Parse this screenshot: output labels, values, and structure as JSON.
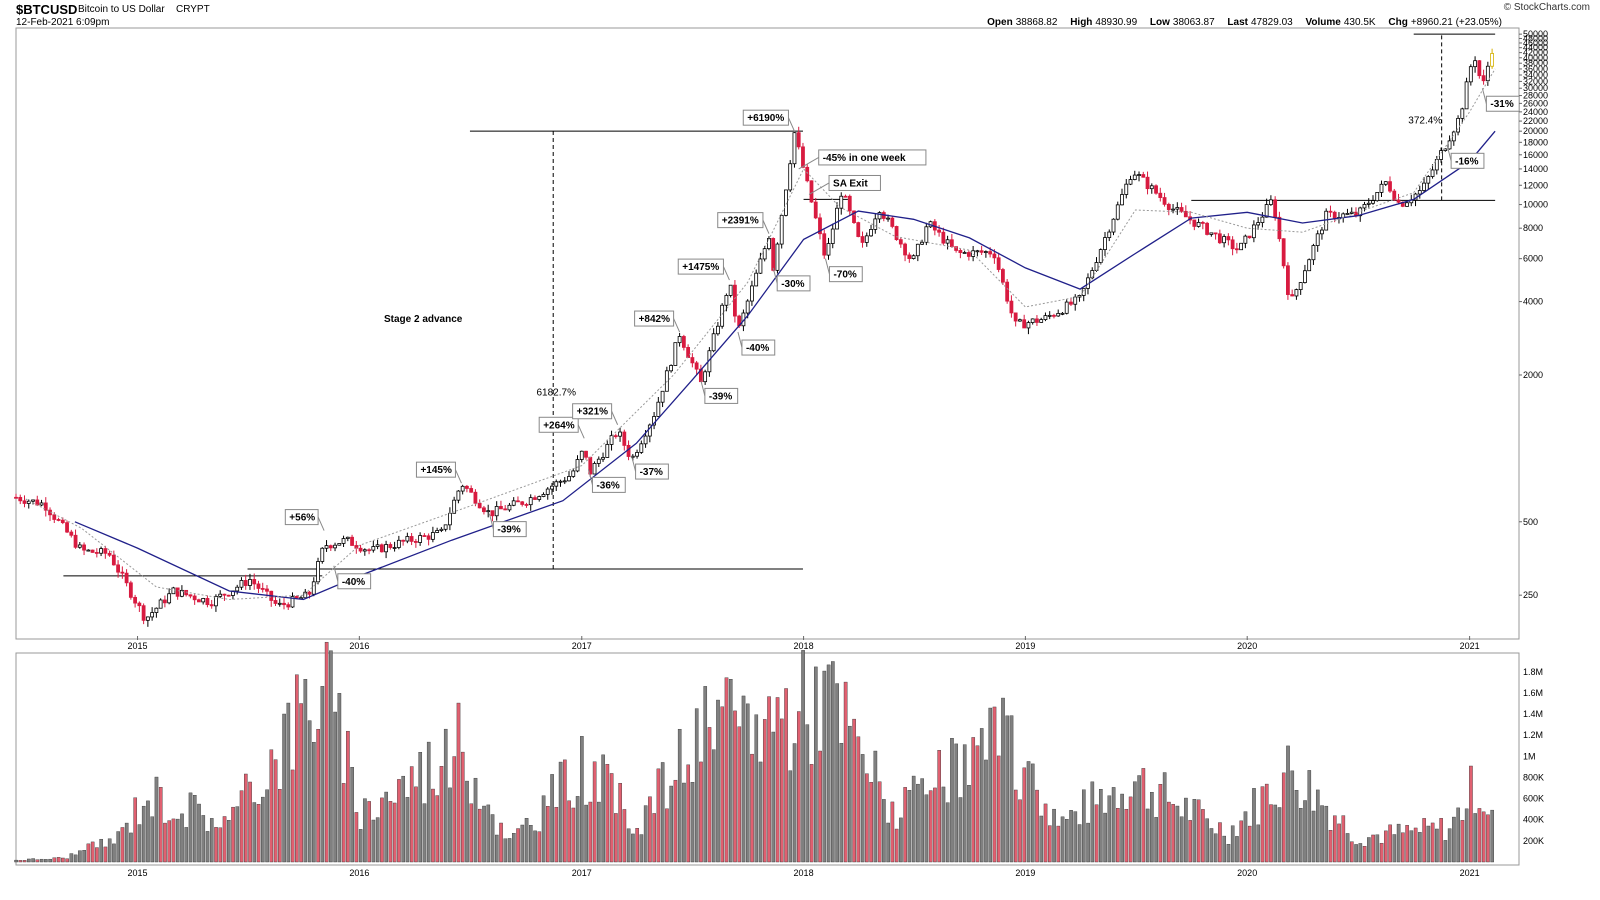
{
  "header": {
    "symbol": "$BTCUSD",
    "name": "Bitcoin to US Dollar",
    "exchange": "CRYPT",
    "date": "12-Feb-2021 6:09pm",
    "brand": "© StockCharts.com",
    "open_label": "Open",
    "open": "38868.82",
    "high_label": "High",
    "high": "48930.99",
    "low_label": "Low",
    "low": "38063.87",
    "last_label": "Last",
    "last": "47829.03",
    "volume_label": "Volume",
    "volume": "430.5K",
    "chg_label": "Chg",
    "chg": "+8960.21 (+23.05%)"
  },
  "colors": {
    "up": "#000000",
    "down": "#d81b40",
    "ma_long": "#20208a",
    "ma_short": "#999999",
    "vol_up": "#808080",
    "vol_down": "#e06070",
    "last_bar": "#d4b000"
  },
  "chart_data": [
    {
      "type": "candlestick",
      "scale": "log",
      "ylim": [
        170,
        52000
      ],
      "xlim": [
        "2014-06-15",
        "2021-02-20"
      ],
      "x_ticks": [
        "2015",
        "2016",
        "2017",
        "2018",
        "2019",
        "2020",
        "2021"
      ],
      "y_ticks": [
        250,
        500,
        2000,
        4000,
        6000,
        8000,
        10000,
        12000,
        14000,
        16000,
        18000,
        20000,
        22000,
        24000,
        26000,
        28000,
        30000,
        32000,
        34000,
        36000,
        38000,
        40000,
        42000,
        44000,
        46000,
        48000,
        50000
      ],
      "price_path": [
        [
          "2014-06-15",
          630
        ],
        [
          "2014-08-01",
          590
        ],
        [
          "2014-10-01",
          380
        ],
        [
          "2014-11-15",
          370
        ],
        [
          "2015-01-14",
          200
        ],
        [
          "2015-03-01",
          260
        ],
        [
          "2015-05-01",
          235
        ],
        [
          "2015-07-05",
          290
        ],
        [
          "2015-08-20",
          225
        ],
        [
          "2015-10-10",
          250
        ],
        [
          "2015-11-04",
          400
        ],
        [
          "2015-12-10",
          420
        ],
        [
          "2016-01-20",
          380
        ],
        [
          "2016-03-15",
          415
        ],
        [
          "2016-05-15",
          450
        ],
        [
          "2016-06-17",
          720
        ],
        [
          "2016-08-02",
          540
        ],
        [
          "2016-10-01",
          610
        ],
        [
          "2016-12-15",
          780
        ],
        [
          "2017-01-05",
          1000
        ],
        [
          "2017-01-12",
          780
        ],
        [
          "2017-03-01",
          1180
        ],
        [
          "2017-03-24",
          900
        ],
        [
          "2017-05-01",
          1400
        ],
        [
          "2017-06-11",
          2950
        ],
        [
          "2017-07-16",
          1850
        ],
        [
          "2017-09-01",
          4800
        ],
        [
          "2017-09-15",
          3000
        ],
        [
          "2017-11-05",
          7500
        ],
        [
          "2017-11-12",
          5500
        ],
        [
          "2017-12-17",
          19700
        ],
        [
          "2018-02-06",
          6000
        ],
        [
          "2018-03-05",
          11500
        ],
        [
          "2018-04-06",
          6600
        ],
        [
          "2018-05-05",
          9800
        ],
        [
          "2018-06-29",
          5800
        ],
        [
          "2018-07-25",
          8400
        ],
        [
          "2018-09-10",
          6300
        ],
        [
          "2018-11-10",
          6400
        ],
        [
          "2018-12-15",
          3200
        ],
        [
          "2019-02-01",
          3400
        ],
        [
          "2019-04-01",
          4100
        ],
        [
          "2019-06-26",
          13800
        ],
        [
          "2019-09-01",
          9600
        ],
        [
          "2019-12-18",
          6500
        ],
        [
          "2020-02-12",
          10500
        ],
        [
          "2020-03-12",
          3900
        ],
        [
          "2020-05-10",
          9000
        ],
        [
          "2020-07-01",
          9100
        ],
        [
          "2020-08-17",
          12400
        ],
        [
          "2020-09-08",
          10000
        ],
        [
          "2020-10-15",
          11500
        ],
        [
          "2020-12-16",
          23000
        ],
        [
          "2021-01-08",
          42000
        ],
        [
          "2021-01-22",
          30000
        ],
        [
          "2021-02-12",
          48930
        ]
      ],
      "ma_long": [
        [
          "2014-09-20",
          500
        ],
        [
          "2015-01-01",
          390
        ],
        [
          "2015-06-01",
          260
        ],
        [
          "2015-10-01",
          240
        ],
        [
          "2016-01-01",
          300
        ],
        [
          "2016-06-01",
          420
        ],
        [
          "2016-12-01",
          610
        ],
        [
          "2017-04-01",
          1050
        ],
        [
          "2017-07-01",
          1900
        ],
        [
          "2017-10-01",
          3500
        ],
        [
          "2018-01-01",
          7200
        ],
        [
          "2018-04-01",
          9400
        ],
        [
          "2018-07-01",
          8700
        ],
        [
          "2018-10-01",
          7300
        ],
        [
          "2019-01-01",
          5500
        ],
        [
          "2019-04-01",
          4500
        ],
        [
          "2019-07-01",
          6300
        ],
        [
          "2019-10-01",
          8800
        ],
        [
          "2020-01-01",
          9300
        ],
        [
          "2020-04-01",
          8400
        ],
        [
          "2020-07-01",
          9000
        ],
        [
          "2020-10-01",
          10500
        ],
        [
          "2021-01-01",
          15000
        ],
        [
          "2021-02-12",
          20000
        ]
      ],
      "ma_short": [
        [
          "2014-07-01",
          620
        ],
        [
          "2014-10-01",
          470
        ],
        [
          "2015-02-01",
          270
        ],
        [
          "2015-06-01",
          240
        ],
        [
          "2015-10-01",
          250
        ],
        [
          "2016-01-01",
          400
        ],
        [
          "2016-07-01",
          580
        ],
        [
          "2017-01-01",
          850
        ],
        [
          "2017-06-01",
          2000
        ],
        [
          "2017-10-01",
          4800
        ],
        [
          "2018-01-01",
          14000
        ],
        [
          "2018-03-01",
          9800
        ],
        [
          "2018-06-01",
          7400
        ],
        [
          "2018-10-01",
          6500
        ],
        [
          "2019-01-01",
          3800
        ],
        [
          "2019-04-01",
          4200
        ],
        [
          "2019-07-01",
          9500
        ],
        [
          "2019-10-01",
          9300
        ],
        [
          "2020-01-01",
          8000
        ],
        [
          "2020-04-01",
          7700
        ],
        [
          "2020-07-01",
          9300
        ],
        [
          "2020-10-01",
          11200
        ],
        [
          "2021-01-01",
          24000
        ],
        [
          "2021-02-12",
          36000
        ]
      ],
      "horizontal_lines": [
        {
          "x1": "2014-09-01",
          "x2": "2015-11-01",
          "y": 300
        },
        {
          "x1": "2015-07-01",
          "x2": "2017-12-31",
          "y": 320
        },
        {
          "x1": "2016-07-01",
          "x2": "2017-12-31",
          "y": 20000
        },
        {
          "x1": "2018-01-01",
          "x2": "2018-03-15",
          "y": 10500
        },
        {
          "x1": "2019-10-01",
          "x2": "2021-02-12",
          "y": 10400
        },
        {
          "x1": "2020-10-01",
          "x2": "2021-02-12",
          "y": 50000
        }
      ],
      "vertical_lines": [
        {
          "x": "2016-11-15",
          "y1": 320,
          "y2": 20000
        },
        {
          "x": "2020-11-16",
          "y1": 10400,
          "y2": 50000
        }
      ],
      "annotations": [
        {
          "label": "+56%",
          "x": "2015-11-04",
          "y": 460,
          "dir": "up",
          "boxed": true
        },
        {
          "label": "-40%",
          "x": "2015-11-20",
          "y": 330,
          "dir": "down",
          "boxed": true
        },
        {
          "label": "+145%",
          "x": "2016-06-17",
          "y": 720,
          "dir": "up",
          "boxed": true
        },
        {
          "label": "-39%",
          "x": "2016-08-02",
          "y": 540,
          "dir": "down",
          "boxed": true
        },
        {
          "label": "+264%",
          "x": "2017-01-05",
          "y": 1100,
          "dir": "up",
          "boxed": true
        },
        {
          "label": "-36%",
          "x": "2017-01-12",
          "y": 820,
          "dir": "down",
          "boxed": true
        },
        {
          "label": "+321%",
          "x": "2017-03-01",
          "y": 1250,
          "dir": "up",
          "boxed": true
        },
        {
          "label": "-37%",
          "x": "2017-03-24",
          "y": 930,
          "dir": "down",
          "boxed": true
        },
        {
          "label": "+842%",
          "x": "2017-06-11",
          "y": 3000,
          "dir": "up",
          "boxed": true
        },
        {
          "label": "-39%",
          "x": "2017-07-16",
          "y": 1900,
          "dir": "down",
          "boxed": true
        },
        {
          "label": "+1475%",
          "x": "2017-09-01",
          "y": 4900,
          "dir": "up",
          "boxed": true
        },
        {
          "label": "-40%",
          "x": "2017-09-15",
          "y": 3000,
          "dir": "down",
          "boxed": true
        },
        {
          "label": "+2391%",
          "x": "2017-11-05",
          "y": 7600,
          "dir": "up",
          "boxed": true
        },
        {
          "label": "-30%",
          "x": "2017-11-12",
          "y": 5500,
          "dir": "down",
          "boxed": true
        },
        {
          "label": "+6190%",
          "x": "2017-12-17",
          "y": 20000,
          "dir": "up",
          "boxed": true
        },
        {
          "label": "-45% in one week",
          "x": "2017-12-24",
          "y": 14000,
          "dir": "right",
          "boxed": true
        },
        {
          "label": "SA Exit",
          "x": "2018-01-10",
          "y": 11000,
          "dir": "right",
          "boxed": true
        },
        {
          "label": "-70%",
          "x": "2018-02-06",
          "y": 6000,
          "dir": "down",
          "boxed": true
        },
        {
          "label": "-16%",
          "x": "2020-11-25",
          "y": 17500,
          "dir": "down",
          "boxed": true
        },
        {
          "label": "-31%",
          "x": "2021-01-22",
          "y": 30000,
          "dir": "down",
          "boxed": true
        },
        {
          "label": "Stage 2 advance",
          "x": "2016-04-15",
          "y": 3300,
          "boxed": false
        },
        {
          "label": "6182.7%",
          "x": "2016-11-20",
          "y": 1650,
          "boxed": false
        },
        {
          "label": "372.4%",
          "x": "2020-10-20",
          "y": 21500,
          "boxed": false
        }
      ]
    },
    {
      "type": "bar",
      "title": "Volume",
      "ylim": [
        0,
        1950000
      ],
      "y_ticks": [
        "200K",
        "400K",
        "600K",
        "800K",
        "1M",
        "1.2M",
        "1.4M",
        "1.6M",
        "1.8M"
      ],
      "y_tick_values": [
        200000,
        400000,
        600000,
        800000,
        1000000,
        1200000,
        1400000,
        1600000,
        1800000
      ],
      "x_ticks": [
        "2015",
        "2016",
        "2017",
        "2018",
        "2019",
        "2020",
        "2021"
      ],
      "volume_path": [
        [
          "2014-06-15",
          20000
        ],
        [
          "2014-09-01",
          40000
        ],
        [
          "2014-12-01",
          250000
        ],
        [
          "2015-01-14",
          700000
        ],
        [
          "2015-06-01",
          400000
        ],
        [
          "2015-11-04",
          1900000
        ],
        [
          "2016-01-01",
          500000
        ],
        [
          "2016-06-17",
          1200000
        ],
        [
          "2016-09-01",
          180000
        ],
        [
          "2017-01-05",
          1000000
        ],
        [
          "2017-04-01",
          400000
        ],
        [
          "2017-07-16",
          1300000
        ],
        [
          "2017-12-17",
          1550000
        ],
        [
          "2018-02-06",
          1750000
        ],
        [
          "2018-06-01",
          500000
        ],
        [
          "2018-11-20",
          1250000
        ],
        [
          "2019-03-01",
          400000
        ],
        [
          "2019-06-26",
          850000
        ],
        [
          "2019-12-01",
          300000
        ],
        [
          "2020-03-12",
          950000
        ],
        [
          "2020-07-01",
          250000
        ],
        [
          "2020-12-01",
          350000
        ],
        [
          "2021-01-11",
          800000
        ],
        [
          "2021-02-12",
          430500
        ]
      ]
    }
  ]
}
